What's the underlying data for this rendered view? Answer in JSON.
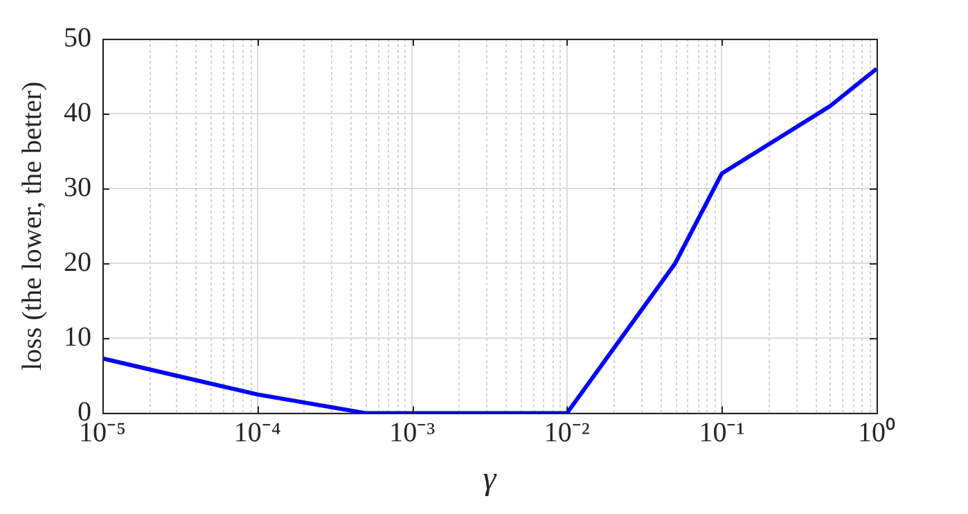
{
  "chart_data": {
    "type": "line",
    "xlabel": "γ",
    "ylabel": "loss (the lower, the better)",
    "log": "x",
    "x": [
      1e-05,
      0.0001,
      0.0005,
      0.01,
      0.05,
      0.1,
      0.5,
      1
    ],
    "series": [
      {
        "color": "#0000ff",
        "values": [
          7.3,
          2.5,
          0,
          0,
          20,
          32,
          41,
          46
        ]
      }
    ],
    "xlim": [
      1e-05,
      1
    ],
    "xticks": [
      {
        "value": 1e-05,
        "label": "10⁻⁵"
      },
      {
        "value": 0.0001,
        "label": "10⁻⁴"
      },
      {
        "value": 0.001,
        "label": "10⁻³"
      },
      {
        "value": 0.01,
        "label": "10⁻²"
      },
      {
        "value": 0.1,
        "label": "10⁻¹"
      },
      {
        "value": 1,
        "label": "10⁰"
      }
    ],
    "ylim": [
      0,
      50
    ],
    "yticks": [
      0,
      10,
      20,
      30,
      40,
      50
    ],
    "grid": true,
    "legend": false,
    "marker": "none",
    "line_style": "solid"
  }
}
